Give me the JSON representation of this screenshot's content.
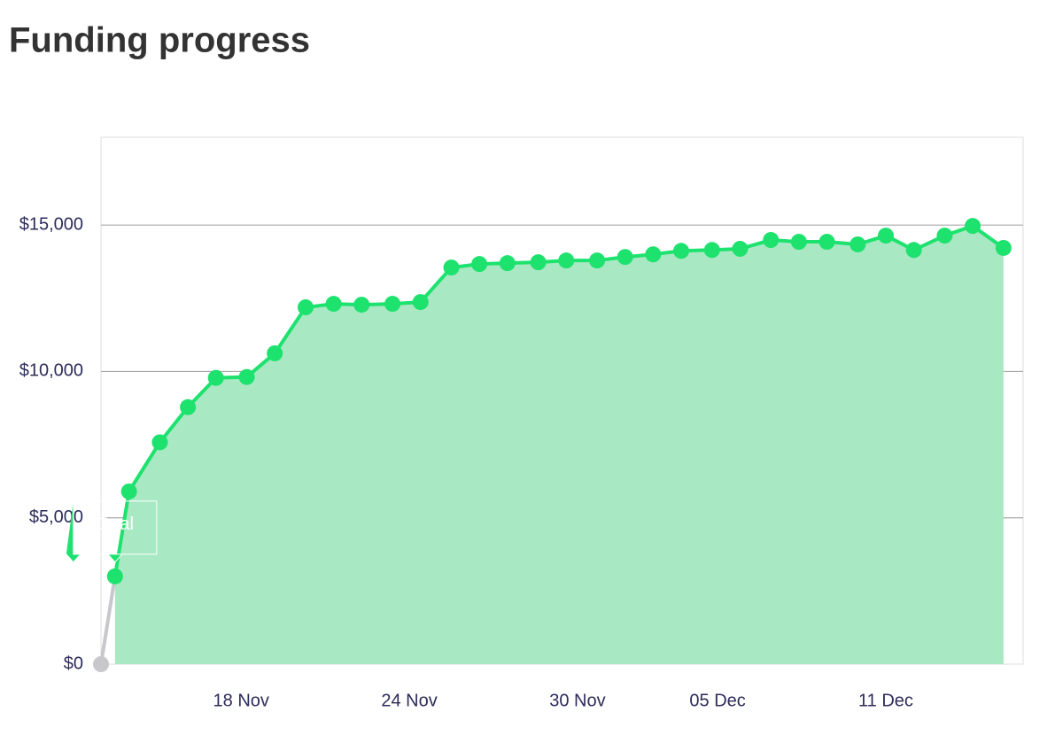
{
  "chart_data": {
    "type": "area",
    "title": "Funding progress",
    "x": [
      13.0,
      13.5,
      14.0,
      15.1,
      16.1,
      17.1,
      18.2,
      19.2,
      20.3,
      21.3,
      22.3,
      23.4,
      24.4,
      25.5,
      26.5,
      27.5,
      28.6,
      29.6,
      30.7,
      31.7,
      32.7,
      33.7,
      34.8,
      35.8,
      36.9,
      37.9,
      38.9,
      40.0,
      41.0,
      42.0,
      43.1,
      44.1,
      45.2
    ],
    "values": [
      0,
      3000,
      5900,
      7580,
      8780,
      9780,
      9810,
      10620,
      12190,
      12310,
      12280,
      12310,
      12370,
      13550,
      13670,
      13700,
      13730,
      13790,
      13790,
      13910,
      14000,
      14120,
      14150,
      14190,
      14490,
      14430,
      14430,
      14340,
      14640,
      14150,
      14640,
      14970,
      14220
    ],
    "color": "#1de26e",
    "area_color": "#a8e8c3",
    "start_color": "#c8c8cc",
    "xlim": [
      13.0,
      45.9
    ],
    "xticks": [
      {
        "value": 18,
        "label": "18 Nov"
      },
      {
        "value": 24,
        "label": "24 Nov"
      },
      {
        "value": 30,
        "label": "30 Nov"
      },
      {
        "value": 35,
        "label": "05 Dec"
      },
      {
        "value": 41,
        "label": "11 Dec"
      }
    ],
    "ylim": [
      0,
      18000
    ],
    "yticks": [
      {
        "value": 0,
        "label": "$0"
      },
      {
        "value": 5000,
        "label": "$5,000"
      },
      {
        "value": 10000,
        "label": "$10,000"
      },
      {
        "value": 15000,
        "label": "$15,000"
      }
    ],
    "grid": true,
    "annotation": {
      "text": "Goal",
      "index": 1
    }
  }
}
